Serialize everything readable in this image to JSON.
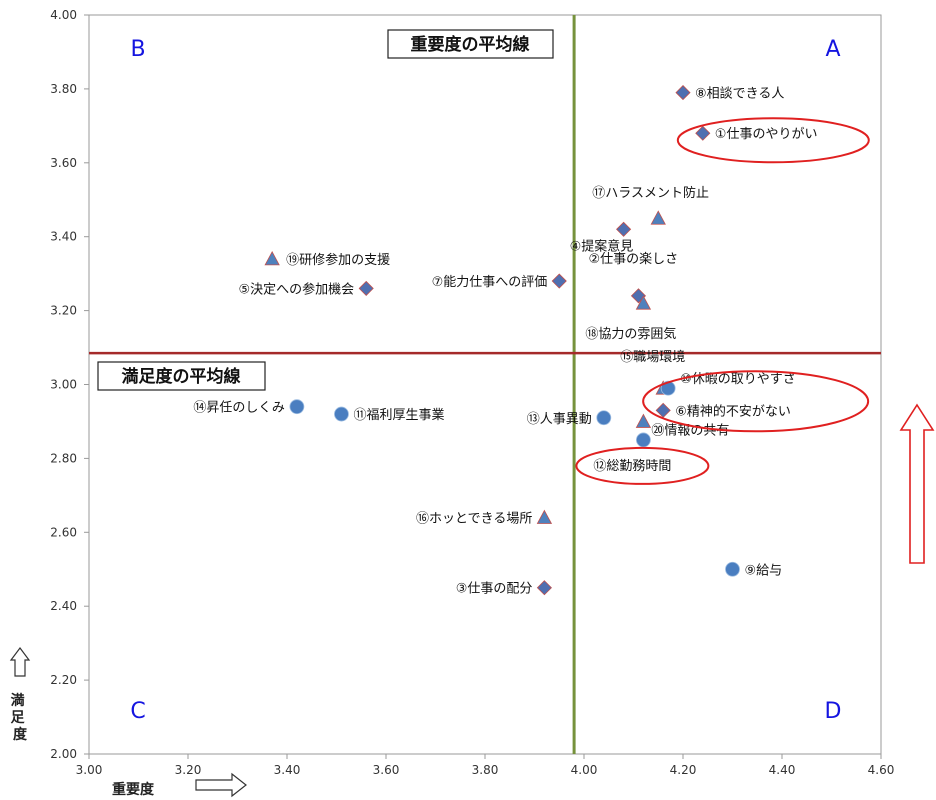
{
  "chart_data": {
    "type": "scatter",
    "title": "",
    "xlabel": "重要度",
    "ylabel": "満足度",
    "xlim": [
      3.0,
      4.6
    ],
    "ylim": [
      2.0,
      4.0
    ],
    "xticks": [
      "3.00",
      "3.20",
      "3.40",
      "3.60",
      "3.80",
      "4.00",
      "4.20",
      "4.40",
      "4.60"
    ],
    "yticks": [
      "2.00",
      "2.20",
      "2.40",
      "2.60",
      "2.80",
      "3.00",
      "3.20",
      "3.40",
      "3.60",
      "3.80",
      "4.00"
    ],
    "grid": false,
    "ref_lines": {
      "importance_avg": {
        "label": "重要度の平均線",
        "value": 3.98,
        "color": "#76923c"
      },
      "satisfaction_avg": {
        "label": "満足度の平均線",
        "value": 3.085,
        "color": "#a52a2a"
      }
    },
    "quadrants": [
      "A",
      "B",
      "C",
      "D"
    ],
    "quadrant_color": "#1515e0",
    "highlight_color": "#e02020",
    "colors": {
      "diamond": "#4f6fb0",
      "triangle": "#4f81bd",
      "circle": "#4a7ec0"
    },
    "points": [
      {
        "id": "p8",
        "label": "⑧相談できる人",
        "x": 4.2,
        "y": 3.79,
        "shape": "diamond"
      },
      {
        "id": "p1",
        "label": "①仕事のやりがい",
        "x": 4.24,
        "y": 3.68,
        "shape": "diamond",
        "highlight": true
      },
      {
        "id": "p17",
        "label": "⑰ハラスメント防止",
        "x": 4.15,
        "y": 3.45,
        "shape": "triangle"
      },
      {
        "id": "p4",
        "label": "④提案意見",
        "x": 4.08,
        "y": 3.42,
        "shape": "diamond"
      },
      {
        "id": "p2",
        "label": "②仕事の楽しさ",
        "x": 4.11,
        "y": 3.24,
        "shape": "diamond"
      },
      {
        "id": "p18",
        "label": "⑱協力の雰囲気",
        "x": 4.12,
        "y": 3.22,
        "shape": "triangle"
      },
      {
        "id": "p19",
        "label": "⑲研修参加の支援",
        "x": 3.37,
        "y": 3.34,
        "shape": "triangle"
      },
      {
        "id": "p5",
        "label": "⑤決定への参加機会",
        "x": 3.56,
        "y": 3.26,
        "shape": "diamond"
      },
      {
        "id": "p7",
        "label": "⑦能力仕事への評価",
        "x": 3.95,
        "y": 3.28,
        "shape": "diamond"
      },
      {
        "id": "p15",
        "label": "⑮職場環境",
        "x": 4.16,
        "y": 2.99,
        "shape": "triangle"
      },
      {
        "id": "p10",
        "label": "⑩休暇の取りやすさ",
        "x": 4.17,
        "y": 2.99,
        "shape": "circle",
        "highlight": true
      },
      {
        "id": "p6",
        "label": "⑥精神的不安がない",
        "x": 4.16,
        "y": 2.93,
        "shape": "diamond",
        "highlight": true
      },
      {
        "id": "p14",
        "label": "⑭昇任のしくみ",
        "x": 3.42,
        "y": 2.94,
        "shape": "circle"
      },
      {
        "id": "p11",
        "label": "⑪福利厚生事業",
        "x": 3.51,
        "y": 2.92,
        "shape": "circle"
      },
      {
        "id": "p13",
        "label": "⑬人事異動",
        "x": 4.04,
        "y": 2.91,
        "shape": "circle"
      },
      {
        "id": "p20",
        "label": "⑳情報の共有",
        "x": 4.12,
        "y": 2.9,
        "shape": "triangle"
      },
      {
        "id": "p12",
        "label": "⑫総勤務時間",
        "x": 4.12,
        "y": 2.85,
        "shape": "circle",
        "highlight": true
      },
      {
        "id": "p16",
        "label": "⑯ホッとできる場所",
        "x": 3.92,
        "y": 2.64,
        "shape": "triangle"
      },
      {
        "id": "p9",
        "label": "⑨給与",
        "x": 4.3,
        "y": 2.5,
        "shape": "circle"
      },
      {
        "id": "p3",
        "label": "③仕事の配分",
        "x": 3.92,
        "y": 2.45,
        "shape": "diamond"
      }
    ]
  }
}
